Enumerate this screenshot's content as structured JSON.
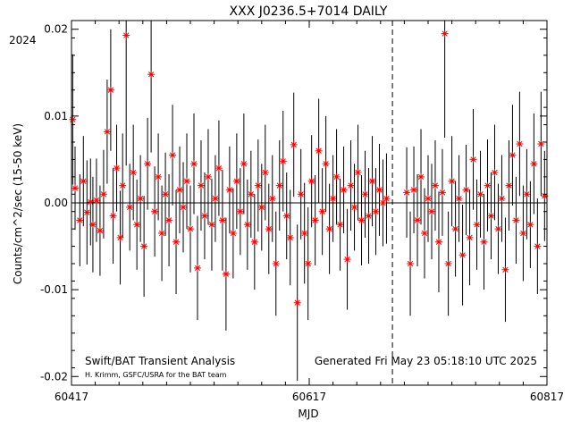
{
  "chart_data": {
    "type": "scatter",
    "title": "XXX J0236.5+7014 DAILY",
    "xlabel": "MJD",
    "ylabel": "Counts/cm^2/sec (15-50 keV)",
    "year_label": "2024",
    "xlim": [
      60417,
      60817
    ],
    "ylim": [
      -0.021,
      0.021
    ],
    "x_ticks": [
      60417,
      60617,
      60817
    ],
    "y_ticks": [
      -0.02,
      -0.01,
      0.0,
      0.01,
      0.02
    ],
    "y_tick_labels": [
      "-0.02",
      "-0.01",
      "0.00",
      "0.01",
      "0.02"
    ],
    "zero_line": 0.0,
    "marker_line_mjd": 60687,
    "footer_left": "Swift/BAT Transient Analysis",
    "footer_credit": "H. Krimm, GSFC/USRA for the BAT team",
    "footer_right": "Generated Fri May 23 05:18:10 UTC 2025",
    "marker_color": "#ff0000",
    "errorbar_color": "#000000",
    "gap": [
      60685,
      60697
    ],
    "series": [
      {
        "points": [
          [
            60418,
            0.0096,
            0.0075
          ],
          [
            60420,
            0.0017,
            0.0048
          ],
          [
            60424,
            -0.002,
            0.0053
          ],
          [
            60427,
            0.0025,
            0.0052
          ],
          [
            60430,
            -0.0011,
            0.006
          ],
          [
            60433,
            0.0001,
            0.005
          ],
          [
            60435,
            -0.0025,
            0.0055
          ],
          [
            60438,
            0.0003,
            0.0048
          ],
          [
            60441,
            -0.0032,
            0.0052
          ],
          [
            60444,
            0.001,
            0.0051
          ],
          [
            60447,
            0.0082,
            0.006
          ],
          [
            60450,
            0.013,
            0.007
          ],
          [
            60452,
            -0.0015,
            0.0055
          ],
          [
            60455,
            0.004,
            0.005
          ],
          [
            60458,
            -0.004,
            0.0054
          ],
          [
            60460,
            0.002,
            0.006
          ],
          [
            60463,
            0.0193,
            0.015
          ],
          [
            60466,
            -0.0005,
            0.005
          ],
          [
            60469,
            0.0035,
            0.0055
          ],
          [
            60472,
            -0.0025,
            0.0052
          ],
          [
            60475,
            0.0005,
            0.005
          ],
          [
            60478,
            -0.005,
            0.0058
          ],
          [
            60481,
            0.0045,
            0.0053
          ],
          [
            60484,
            0.0148,
            0.009
          ],
          [
            60487,
            -0.001,
            0.0052
          ],
          [
            60490,
            0.003,
            0.005
          ],
          [
            60493,
            -0.0035,
            0.0055
          ],
          [
            60496,
            0.001,
            0.0048
          ],
          [
            60499,
            -0.002,
            0.0053
          ],
          [
            60502,
            0.0055,
            0.0058
          ],
          [
            60505,
            -0.0045,
            0.006
          ],
          [
            60508,
            0.0015,
            0.005
          ],
          [
            60511,
            -0.0005,
            0.0052
          ],
          [
            60514,
            0.0025,
            0.0055
          ],
          [
            60517,
            -0.003,
            0.005
          ],
          [
            60520,
            0.0045,
            0.0058
          ],
          [
            60523,
            -0.0075,
            0.006
          ],
          [
            60526,
            0.002,
            0.0052
          ],
          [
            60529,
            -0.0015,
            0.005
          ],
          [
            60532,
            0.003,
            0.0055
          ],
          [
            60535,
            -0.0025,
            0.0053
          ],
          [
            60538,
            0.0005,
            0.005
          ],
          [
            60541,
            0.004,
            0.0055
          ],
          [
            60544,
            -0.002,
            0.0058
          ],
          [
            60547,
            -0.0082,
            0.0065
          ],
          [
            60550,
            0.0015,
            0.005
          ],
          [
            60553,
            -0.0035,
            0.0052
          ],
          [
            60556,
            0.0025,
            0.0055
          ],
          [
            60559,
            -0.001,
            0.005
          ],
          [
            60562,
            0.0045,
            0.0058
          ],
          [
            60565,
            -0.0025,
            0.0052
          ],
          [
            60568,
            0.001,
            0.005
          ],
          [
            60571,
            -0.0045,
            0.0055
          ],
          [
            60574,
            0.002,
            0.0053
          ],
          [
            60577,
            -0.0005,
            0.005
          ],
          [
            60580,
            0.0035,
            0.0055
          ],
          [
            60583,
            -0.003,
            0.0052
          ],
          [
            60586,
            0.0005,
            0.005
          ],
          [
            60589,
            -0.007,
            0.006
          ],
          [
            60592,
            0.002,
            0.0052
          ],
          [
            60595,
            0.0048,
            0.0058
          ],
          [
            60598,
            -0.0015,
            0.005
          ],
          [
            60601,
            -0.004,
            0.0055
          ],
          [
            60604,
            0.0067,
            0.006
          ],
          [
            60607,
            -0.0115,
            0.009
          ],
          [
            60610,
            0.001,
            0.0052
          ],
          [
            60613,
            -0.0035,
            0.0058
          ],
          [
            60616,
            -0.007,
            0.0065
          ],
          [
            60619,
            0.0025,
            0.0053
          ],
          [
            60622,
            -0.002,
            0.0052
          ],
          [
            60625,
            0.006,
            0.006
          ],
          [
            60628,
            -0.001,
            0.005
          ],
          [
            60631,
            0.0045,
            0.0055
          ],
          [
            60634,
            -0.003,
            0.0052
          ],
          [
            60637,
            0.0005,
            0.005
          ],
          [
            60640,
            0.003,
            0.0055
          ],
          [
            60643,
            -0.0025,
            0.0053
          ],
          [
            60646,
            0.0015,
            0.005
          ],
          [
            60649,
            -0.0065,
            0.0058
          ],
          [
            60652,
            0.002,
            0.0052
          ],
          [
            60655,
            -0.0005,
            0.005
          ],
          [
            60658,
            0.0035,
            0.0055
          ],
          [
            60661,
            -0.002,
            0.0052
          ],
          [
            60664,
            0.001,
            0.005
          ],
          [
            60667,
            -0.0015,
            0.0055
          ],
          [
            60670,
            0.0025,
            0.0052
          ],
          [
            60673,
            -0.001,
            0.005
          ],
          [
            60676,
            0.0015,
            0.0053
          ],
          [
            60679,
            0.0,
            0.005
          ],
          [
            60682,
            0.0005,
            0.0052
          ],
          [
            60699,
            0.0012,
            0.0052
          ],
          [
            60702,
            -0.007,
            0.006
          ],
          [
            60705,
            0.0015,
            0.005
          ],
          [
            60708,
            -0.002,
            0.0053
          ],
          [
            60711,
            0.003,
            0.0055
          ],
          [
            60714,
            -0.0035,
            0.0052
          ],
          [
            60717,
            0.0005,
            0.005
          ],
          [
            60720,
            -0.001,
            0.0055
          ],
          [
            60723,
            0.002,
            0.0052
          ],
          [
            60726,
            -0.0045,
            0.0058
          ],
          [
            60729,
            0.0012,
            0.005
          ],
          [
            60731,
            0.0195,
            0.012
          ],
          [
            60734,
            -0.007,
            0.006
          ],
          [
            60737,
            0.0025,
            0.0052
          ],
          [
            60740,
            -0.003,
            0.0055
          ],
          [
            60743,
            0.0005,
            0.005
          ],
          [
            60746,
            -0.006,
            0.0058
          ],
          [
            60749,
            0.0015,
            0.0052
          ],
          [
            60752,
            -0.004,
            0.0055
          ],
          [
            60755,
            0.005,
            0.0058
          ],
          [
            60758,
            -0.0025,
            0.0052
          ],
          [
            60761,
            0.001,
            0.005
          ],
          [
            60764,
            -0.0045,
            0.0055
          ],
          [
            60767,
            0.002,
            0.0053
          ],
          [
            60770,
            -0.0015,
            0.005
          ],
          [
            60773,
            0.0035,
            0.0055
          ],
          [
            60776,
            -0.003,
            0.0052
          ],
          [
            60779,
            0.0005,
            0.005
          ],
          [
            60782,
            -0.0077,
            0.006
          ],
          [
            60785,
            0.002,
            0.0052
          ],
          [
            60788,
            0.0055,
            0.0058
          ],
          [
            60791,
            -0.002,
            0.005
          ],
          [
            60794,
            0.0068,
            0.006
          ],
          [
            60797,
            -0.0035,
            0.0055
          ],
          [
            60800,
            0.001,
            0.0052
          ],
          [
            60803,
            -0.0025,
            0.005
          ],
          [
            60806,
            0.0045,
            0.0058
          ],
          [
            60809,
            -0.005,
            0.0055
          ],
          [
            60812,
            0.0068,
            0.006
          ],
          [
            60815,
            0.0008,
            0.0052
          ]
        ]
      }
    ]
  }
}
